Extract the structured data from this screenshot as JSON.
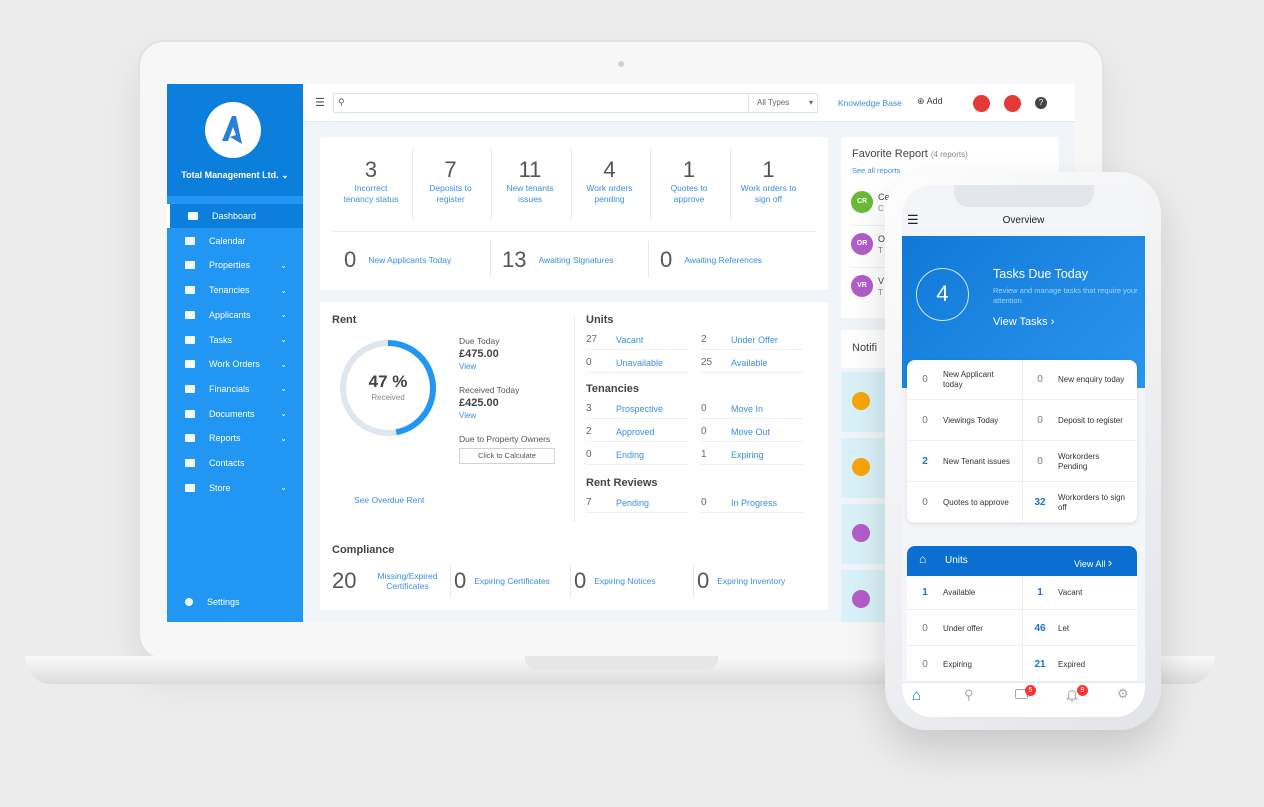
{
  "app": {
    "org_name": "Total Management Ltd."
  },
  "sidebar": {
    "items": [
      {
        "label": "Dashboard",
        "active": true
      },
      {
        "label": "Calendar"
      },
      {
        "label": "Properties",
        "expandable": true
      },
      {
        "label": "Tenancies",
        "expandable": true
      },
      {
        "label": "Applicants",
        "expandable": true
      },
      {
        "label": "Tasks",
        "expandable": true
      },
      {
        "label": "Work Orders",
        "expandable": true
      },
      {
        "label": "Financials",
        "expandable": true
      },
      {
        "label": "Documents",
        "expandable": true
      },
      {
        "label": "Reports",
        "expandable": true
      },
      {
        "label": "Contacts"
      },
      {
        "label": "Store",
        "expandable": true
      }
    ],
    "settings": "Settings"
  },
  "topbar": {
    "search_placeholder": "",
    "type_select": "All Types",
    "knowledge_base": "Knowledge Base",
    "add": "Add"
  },
  "summary": {
    "stats": [
      {
        "value": "3",
        "label": "Incorrect tenancy status"
      },
      {
        "value": "7",
        "label": "Deposits to register"
      },
      {
        "value": "11",
        "label": "New tenants issues"
      },
      {
        "value": "4",
        "label": "Work orders pending"
      },
      {
        "value": "1",
        "label": "Quotes to approve"
      },
      {
        "value": "1",
        "label": "Work orders to sign off"
      }
    ],
    "row2": [
      {
        "value": "0",
        "label": "New Applicants Today"
      },
      {
        "value": "13",
        "label": "Awaiting Signatures"
      },
      {
        "value": "0",
        "label": "Awaiting References"
      }
    ]
  },
  "rent": {
    "title": "Rent",
    "percent": 47,
    "percent_label": "47 %",
    "received_label": "Received",
    "due_today_label": "Due Today",
    "due_today": "£475.00",
    "view": "View",
    "received_today_label": "Received Today",
    "received_today": "£425.00",
    "owners_label": "Due to Property Owners",
    "calc_button": "Click to Calculate",
    "overdue_link": "See Overdue Rent"
  },
  "units": {
    "title": "Units",
    "items": [
      {
        "value": "27",
        "label": "Vacant"
      },
      {
        "value": "2",
        "label": "Under Offer"
      },
      {
        "value": "0",
        "label": "Unavailable"
      },
      {
        "value": "25",
        "label": "Available"
      }
    ]
  },
  "tenancies": {
    "title": "Tenancies",
    "items": [
      {
        "value": "3",
        "label": "Prospective"
      },
      {
        "value": "0",
        "label": "Move In"
      },
      {
        "value": "2",
        "label": "Approved"
      },
      {
        "value": "0",
        "label": "Move Out"
      },
      {
        "value": "0",
        "label": "Ending"
      },
      {
        "value": "1",
        "label": "Expiring"
      }
    ]
  },
  "rent_reviews": {
    "title": "Rent Reviews",
    "items": [
      {
        "value": "7",
        "label": "Pending"
      },
      {
        "value": "0",
        "label": "In Progress"
      }
    ]
  },
  "compliance": {
    "title": "Compliance",
    "items": [
      {
        "value": "20",
        "label": "Missing/Expired Certificates"
      },
      {
        "value": "0",
        "label": "Expiring Certificates"
      },
      {
        "value": "0",
        "label": "Expiring Notices"
      },
      {
        "value": "0",
        "label": "Expiring Inventory"
      }
    ]
  },
  "favorites": {
    "title": "Favorite Report",
    "count": "(4 reports)",
    "see_all": "See all reports",
    "items": [
      {
        "initials": "CR",
        "color": "#6ab936",
        "name": "Ce",
        "sub": "C"
      },
      {
        "initials": "OR",
        "color": "#b35dc9",
        "name": "O",
        "sub": "T"
      },
      {
        "initials": "VR",
        "color": "#b35dc9",
        "name": "V",
        "sub": "T"
      }
    ]
  },
  "notifications": {
    "title": "Notifi",
    "icon_colors": [
      "#f6a609",
      "#f6a609",
      "#b35dc9",
      "#b35dc9"
    ]
  },
  "phone": {
    "title": "Overview",
    "tasks_count": "4",
    "tasks_title": "Tasks Due Today",
    "tasks_sub": "Review and manage tasks that require your attention",
    "view_tasks": "View Tasks",
    "grid": [
      {
        "value": "0",
        "label": "New Applicant today"
      },
      {
        "value": "0",
        "label": "New enquiry today"
      },
      {
        "value": "0",
        "label": "Viewings Today"
      },
      {
        "value": "0",
        "label": "Deposit to register"
      },
      {
        "value": "2",
        "label": "New Tenant issues",
        "hl": true
      },
      {
        "value": "0",
        "label": "Workorders Pending"
      },
      {
        "value": "0",
        "label": "Quotes to approve"
      },
      {
        "value": "32",
        "label": "Workorders to sign off",
        "hl": true
      }
    ],
    "units_title": "Units",
    "view_all": "View All",
    "units": [
      {
        "value": "1",
        "label": "Available",
        "hl": true
      },
      {
        "value": "1",
        "label": "Vacant",
        "hl": true
      },
      {
        "value": "0",
        "label": "Under offer"
      },
      {
        "value": "46",
        "label": "Let",
        "hl": true
      },
      {
        "value": "0",
        "label": "Expiring"
      },
      {
        "value": "21",
        "label": "Expired",
        "hl": true
      }
    ],
    "tabbar": {
      "messages_badge": "5",
      "notifications_badge": "9"
    }
  }
}
